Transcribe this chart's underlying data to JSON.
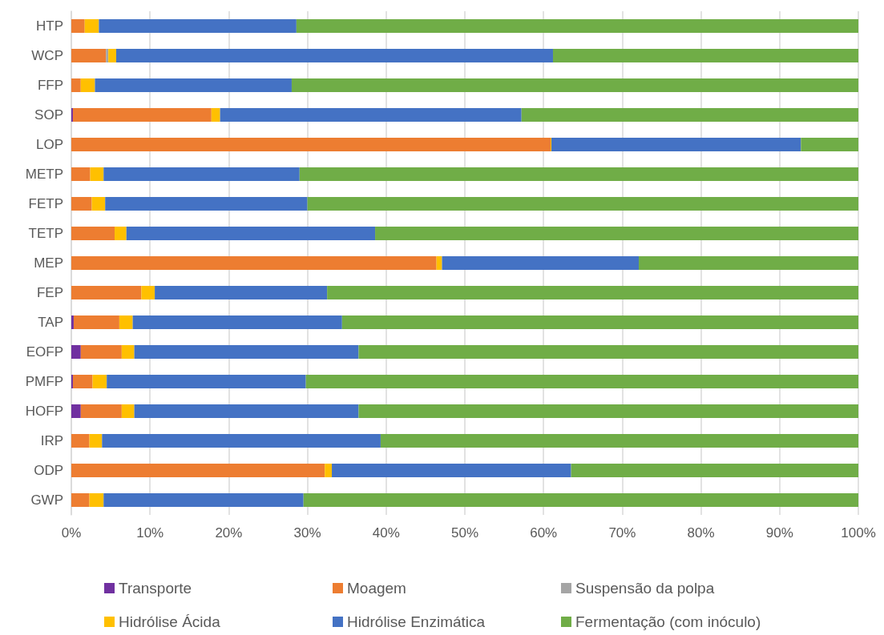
{
  "chart_data": {
    "type": "bar",
    "orientation": "horizontal",
    "stacked": true,
    "categories": [
      "HTP",
      "WCP",
      "FFP",
      "SOP",
      "LOP",
      "METP",
      "FETP",
      "TETP",
      "MEP",
      "FEP",
      "TAP",
      "EOFP",
      "PMFP",
      "HOFP",
      "IRP",
      "ODP",
      "GWP"
    ],
    "series": [
      {
        "name": "Transporte",
        "color": "#7030a0",
        "values": [
          0,
          0,
          0,
          0.2,
          0,
          0,
          0,
          0,
          0,
          0,
          0.3,
          1.2,
          0.2,
          1.2,
          0,
          0,
          0
        ]
      },
      {
        "name": "Moagem",
        "color": "#ed7d31",
        "values": [
          1.7,
          4.4,
          1.2,
          17.6,
          60.9,
          2.4,
          2.6,
          5.5,
          46.4,
          8.9,
          5.8,
          5.2,
          2.5,
          5.2,
          2.3,
          32.2,
          2.3
        ]
      },
      {
        "name": "Suspensão da polpa",
        "color": "#a5a5a5",
        "values": [
          0,
          0.3,
          0,
          0,
          0,
          0,
          0,
          0,
          0,
          0,
          0,
          0,
          0,
          0,
          0,
          0,
          0
        ]
      },
      {
        "name": "Hidrólise Ácida",
        "color": "#ffc000",
        "values": [
          1.8,
          1.0,
          1.8,
          1.1,
          0.1,
          1.7,
          1.7,
          1.5,
          0.7,
          1.7,
          1.7,
          1.6,
          1.8,
          1.6,
          1.6,
          0.9,
          1.8
        ]
      },
      {
        "name": "Hidrólise Enzimática",
        "color": "#4472c4",
        "values": [
          25.1,
          55.5,
          25.0,
          38.3,
          31.7,
          24.9,
          25.7,
          31.6,
          25.0,
          21.9,
          26.6,
          28.5,
          25.3,
          28.5,
          35.4,
          30.4,
          25.4
        ]
      },
      {
        "name": "Fermentação (com inóculo)",
        "color": "#70ad47",
        "values": [
          71.4,
          38.8,
          72.0,
          42.8,
          7.3,
          71.0,
          70.0,
          61.4,
          27.9,
          67.5,
          65.6,
          63.5,
          70.2,
          63.5,
          60.7,
          36.5,
          70.5
        ]
      }
    ],
    "xlim": [
      0,
      100
    ],
    "xticks": [
      {
        "value": 0,
        "label": "0%"
      },
      {
        "value": 10,
        "label": "10%"
      },
      {
        "value": 20,
        "label": "20%"
      },
      {
        "value": 30,
        "label": "30%"
      },
      {
        "value": 40,
        "label": "40%"
      },
      {
        "value": 50,
        "label": "50%"
      },
      {
        "value": 60,
        "label": "60%"
      },
      {
        "value": 70,
        "label": "70%"
      },
      {
        "value": 80,
        "label": "80%"
      },
      {
        "value": 90,
        "label": "90%"
      },
      {
        "value": 100,
        "label": "100%"
      }
    ],
    "grid": "x",
    "legend": "bottom"
  }
}
